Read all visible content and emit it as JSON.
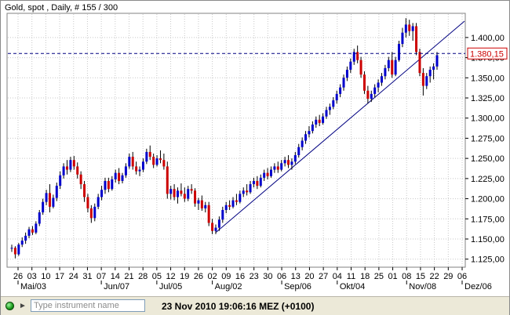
{
  "window": {
    "chart_title": "Gold, spot , Daily, # 155 / 300",
    "status_bar": {
      "instrument_placeholder": "Type instrument name",
      "datetime": "23 Nov 2010 19:06:16  MEZ (+0100)"
    }
  },
  "chart_data": {
    "type": "candlestick",
    "title": "Gold, spot , Daily, # 155 / 300",
    "instrument": "Gold, spot",
    "interval": "Daily",
    "ylim": [
      1115,
      1430
    ],
    "y_ticks": [
      "1.125,00",
      "1.150,00",
      "1.175,00",
      "1.200,00",
      "1.225,00",
      "1.250,00",
      "1.275,00",
      "1.300,00",
      "1.325,00",
      "1.350,00",
      "1.375,00",
      "1.400,00"
    ],
    "y_tick_values": [
      1125,
      1150,
      1175,
      1200,
      1225,
      1250,
      1275,
      1300,
      1325,
      1350,
      1375,
      1400
    ],
    "x_tick_labels": [
      "26",
      "03",
      "10",
      "17",
      "24",
      "31",
      "07",
      "14",
      "21",
      "28",
      "05",
      "12",
      "19",
      "26",
      "02",
      "09",
      "16",
      "23",
      "30",
      "06",
      "13",
      "20",
      "27",
      "04",
      "11",
      "18",
      "25",
      "01",
      "08",
      "15",
      "22",
      "29",
      "06"
    ],
    "month_labels": [
      {
        "label": "Mai/03",
        "tick_index": 0
      },
      {
        "label": "Jun/07",
        "tick_index": 6
      },
      {
        "label": "Jul/05",
        "tick_index": 10
      },
      {
        "label": "Aug/02",
        "tick_index": 14
      },
      {
        "label": "Sep/06",
        "tick_index": 19
      },
      {
        "label": "Okt/04",
        "tick_index": 23
      },
      {
        "label": "Nov/08",
        "tick_index": 28
      },
      {
        "label": "Dez/06",
        "tick_index": 32
      }
    ],
    "price_line": {
      "value": 1380.15,
      "label": "1.380,15"
    },
    "trendline": {
      "from_value": 1158,
      "to_value": 1395
    },
    "colors": {
      "up": "#0000cc",
      "down": "#cc0000",
      "wick": "#000000",
      "trend": "#000080",
      "price_line": "#000080",
      "price_label": "#cc0000",
      "grid": "#c8c8c8"
    },
    "grid": true,
    "candles": [
      [
        1138,
        1143,
        1134,
        1139
      ],
      [
        1139,
        1141,
        1126,
        1131
      ],
      [
        1131,
        1145,
        1129,
        1143
      ],
      [
        1143,
        1152,
        1140,
        1148
      ],
      [
        1148,
        1158,
        1144,
        1154
      ],
      [
        1154,
        1165,
        1151,
        1162
      ],
      [
        1162,
        1166,
        1155,
        1158
      ],
      [
        1158,
        1172,
        1156,
        1169
      ],
      [
        1169,
        1186,
        1166,
        1183
      ],
      [
        1183,
        1200,
        1180,
        1196
      ],
      [
        1196,
        1211,
        1192,
        1207
      ],
      [
        1207,
        1218,
        1183,
        1190
      ],
      [
        1190,
        1205,
        1188,
        1201
      ],
      [
        1201,
        1220,
        1197,
        1216
      ],
      [
        1216,
        1234,
        1212,
        1229
      ],
      [
        1229,
        1244,
        1225,
        1240
      ],
      [
        1240,
        1248,
        1230,
        1236
      ],
      [
        1236,
        1252,
        1233,
        1248
      ],
      [
        1248,
        1253,
        1236,
        1240
      ],
      [
        1240,
        1245,
        1225,
        1230
      ],
      [
        1230,
        1234,
        1212,
        1218
      ],
      [
        1218,
        1222,
        1196,
        1202
      ],
      [
        1202,
        1206,
        1183,
        1188
      ],
      [
        1188,
        1192,
        1170,
        1176
      ],
      [
        1176,
        1194,
        1172,
        1190
      ],
      [
        1190,
        1206,
        1187,
        1202
      ],
      [
        1202,
        1216,
        1198,
        1211
      ],
      [
        1211,
        1226,
        1206,
        1222
      ],
      [
        1222,
        1226,
        1208,
        1212
      ],
      [
        1212,
        1228,
        1210,
        1224
      ],
      [
        1224,
        1236,
        1220,
        1232
      ],
      [
        1232,
        1238,
        1218,
        1222
      ],
      [
        1222,
        1232,
        1219,
        1229
      ],
      [
        1229,
        1244,
        1226,
        1240
      ],
      [
        1240,
        1256,
        1237,
        1252
      ],
      [
        1252,
        1258,
        1236,
        1240
      ],
      [
        1240,
        1246,
        1230,
        1234
      ],
      [
        1234,
        1240,
        1228,
        1236
      ],
      [
        1236,
        1250,
        1233,
        1246
      ],
      [
        1246,
        1262,
        1243,
        1258
      ],
      [
        1258,
        1266,
        1248,
        1252
      ],
      [
        1252,
        1256,
        1238,
        1242
      ],
      [
        1242,
        1254,
        1240,
        1250
      ],
      [
        1250,
        1260,
        1244,
        1248
      ],
      [
        1248,
        1256,
        1236,
        1240
      ],
      [
        1240,
        1246,
        1200,
        1206
      ],
      [
        1206,
        1216,
        1199,
        1212
      ],
      [
        1212,
        1218,
        1198,
        1202
      ],
      [
        1202,
        1214,
        1194,
        1210
      ],
      [
        1210,
        1219,
        1203,
        1206
      ],
      [
        1206,
        1214,
        1196,
        1200
      ],
      [
        1200,
        1216,
        1197,
        1212
      ],
      [
        1212,
        1218,
        1206,
        1210
      ],
      [
        1210,
        1213,
        1190,
        1194
      ],
      [
        1194,
        1201,
        1186,
        1198
      ],
      [
        1198,
        1204,
        1185,
        1188
      ],
      [
        1188,
        1196,
        1183,
        1192
      ],
      [
        1192,
        1196,
        1166,
        1170
      ],
      [
        1170,
        1175,
        1156,
        1160
      ],
      [
        1160,
        1168,
        1156,
        1164
      ],
      [
        1164,
        1178,
        1160,
        1174
      ],
      [
        1174,
        1190,
        1170,
        1186
      ],
      [
        1186,
        1196,
        1182,
        1192
      ],
      [
        1192,
        1198,
        1186,
        1190
      ],
      [
        1190,
        1202,
        1188,
        1198
      ],
      [
        1198,
        1206,
        1192,
        1196
      ],
      [
        1196,
        1210,
        1194,
        1206
      ],
      [
        1206,
        1214,
        1202,
        1210
      ],
      [
        1210,
        1218,
        1204,
        1208
      ],
      [
        1208,
        1222,
        1206,
        1218
      ],
      [
        1218,
        1226,
        1214,
        1222
      ],
      [
        1222,
        1228,
        1212,
        1216
      ],
      [
        1216,
        1230,
        1214,
        1226
      ],
      [
        1226,
        1236,
        1222,
        1232
      ],
      [
        1232,
        1238,
        1224,
        1228
      ],
      [
        1228,
        1240,
        1226,
        1236
      ],
      [
        1236,
        1244,
        1232,
        1240
      ],
      [
        1240,
        1246,
        1232,
        1236
      ],
      [
        1236,
        1248,
        1234,
        1244
      ],
      [
        1244,
        1252,
        1240,
        1248
      ],
      [
        1248,
        1254,
        1238,
        1242
      ],
      [
        1242,
        1250,
        1236,
        1246
      ],
      [
        1246,
        1258,
        1243,
        1254
      ],
      [
        1254,
        1268,
        1251,
        1264
      ],
      [
        1264,
        1276,
        1260,
        1272
      ],
      [
        1272,
        1284,
        1268,
        1280
      ],
      [
        1280,
        1290,
        1276,
        1284
      ],
      [
        1284,
        1296,
        1281,
        1292
      ],
      [
        1292,
        1302,
        1288,
        1298
      ],
      [
        1298,
        1304,
        1290,
        1294
      ],
      [
        1294,
        1306,
        1292,
        1302
      ],
      [
        1302,
        1314,
        1299,
        1310
      ],
      [
        1310,
        1318,
        1304,
        1314
      ],
      [
        1314,
        1326,
        1311,
        1322
      ],
      [
        1322,
        1334,
        1318,
        1330
      ],
      [
        1330,
        1342,
        1326,
        1338
      ],
      [
        1338,
        1354,
        1334,
        1350
      ],
      [
        1350,
        1364,
        1346,
        1360
      ],
      [
        1360,
        1374,
        1356,
        1370
      ],
      [
        1370,
        1386,
        1366,
        1382
      ],
      [
        1382,
        1390,
        1368,
        1372
      ],
      [
        1372,
        1376,
        1350,
        1354
      ],
      [
        1354,
        1358,
        1330,
        1334
      ],
      [
        1334,
        1340,
        1318,
        1324
      ],
      [
        1324,
        1334,
        1320,
        1330
      ],
      [
        1330,
        1342,
        1326,
        1338
      ],
      [
        1338,
        1348,
        1332,
        1344
      ],
      [
        1344,
        1356,
        1340,
        1352
      ],
      [
        1352,
        1366,
        1348,
        1362
      ],
      [
        1362,
        1376,
        1358,
        1372
      ],
      [
        1372,
        1382,
        1350,
        1354
      ],
      [
        1354,
        1376,
        1352,
        1372
      ],
      [
        1372,
        1396,
        1370,
        1392
      ],
      [
        1392,
        1412,
        1388,
        1406
      ],
      [
        1406,
        1424,
        1400,
        1416
      ],
      [
        1416,
        1422,
        1402,
        1408
      ],
      [
        1408,
        1418,
        1396,
        1414
      ],
      [
        1414,
        1418,
        1378,
        1382
      ],
      [
        1382,
        1386,
        1352,
        1356
      ],
      [
        1356,
        1362,
        1328,
        1340
      ],
      [
        1340,
        1356,
        1336,
        1352
      ],
      [
        1352,
        1364,
        1344,
        1360
      ],
      [
        1360,
        1368,
        1348,
        1364
      ],
      [
        1364,
        1382,
        1360,
        1378
      ]
    ]
  }
}
